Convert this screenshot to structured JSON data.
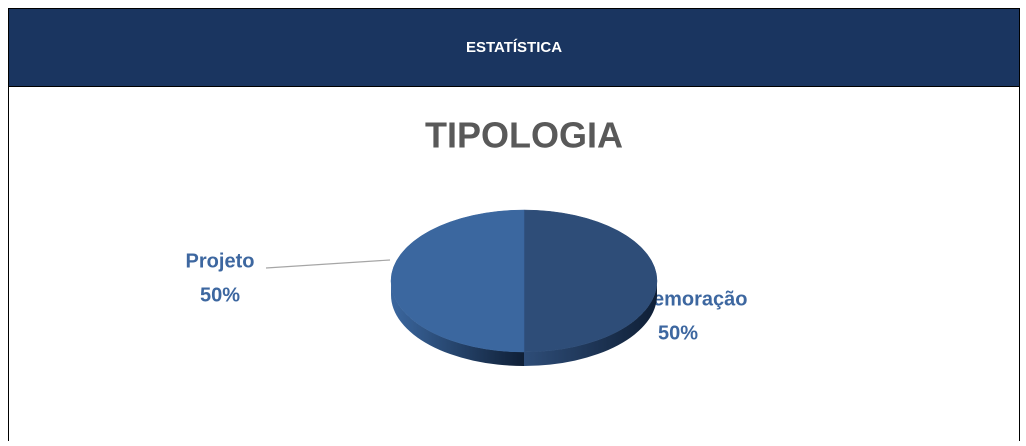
{
  "header": {
    "title": "ESTATÍSTICA"
  },
  "chart_data": {
    "type": "pie",
    "title": "TIPOLOGIA",
    "categories": [
      "Comemoração",
      "Projeto"
    ],
    "values": [
      50,
      50
    ],
    "value_labels": [
      "50%",
      "50%"
    ],
    "colors": [
      "#2e4d78",
      "#3b679f"
    ]
  }
}
